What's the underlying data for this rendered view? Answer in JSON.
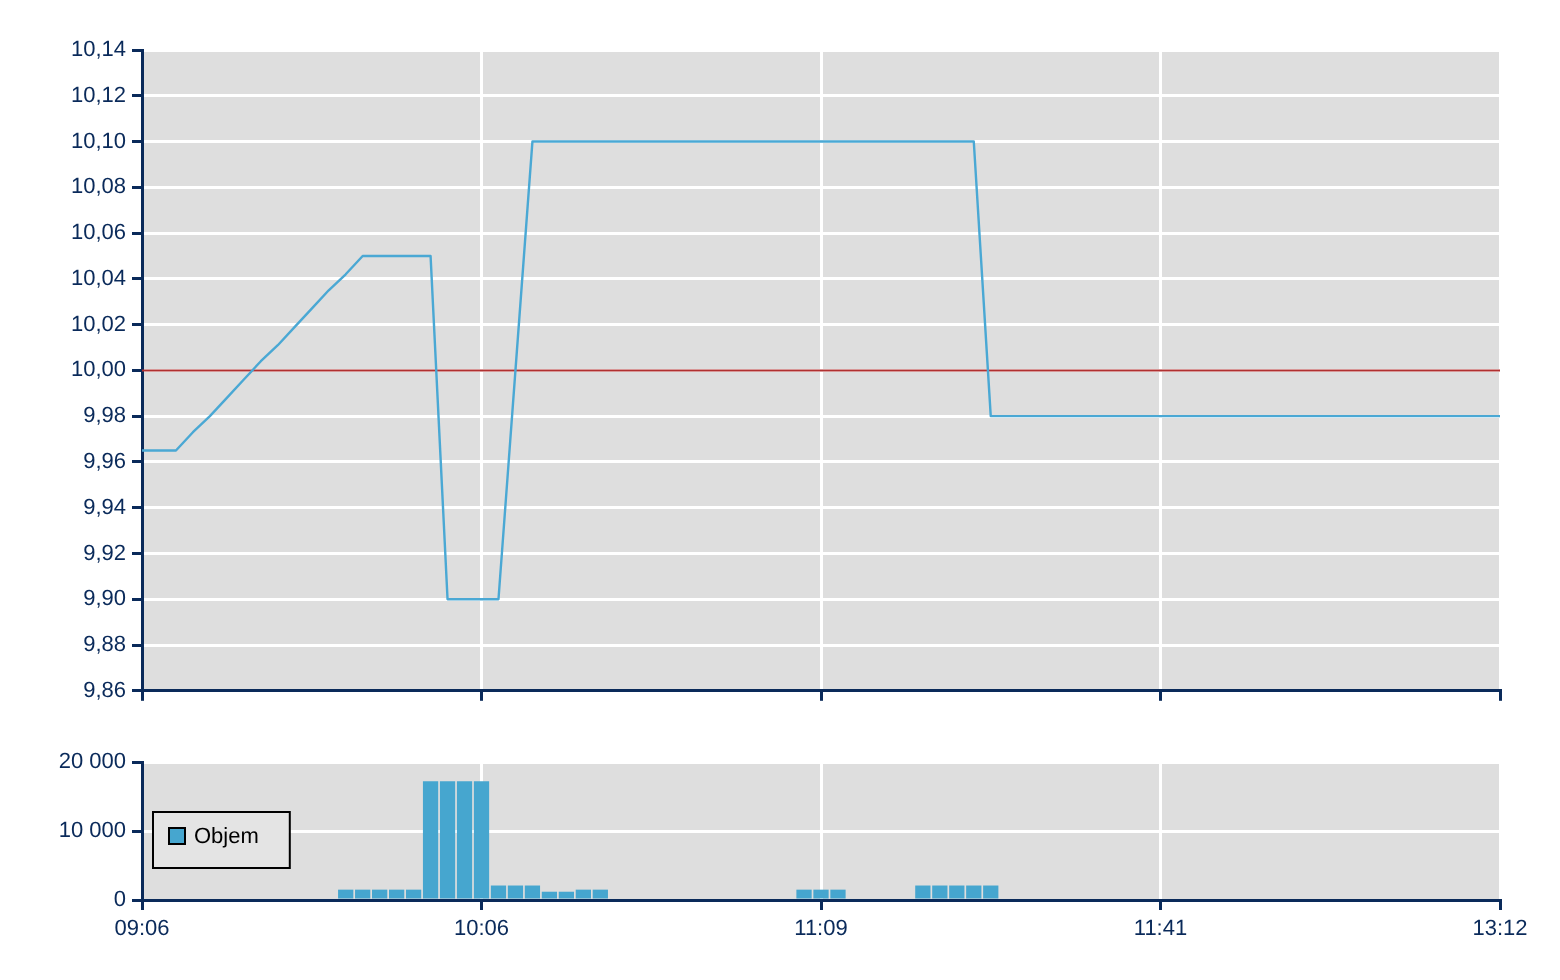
{
  "chart_data": [
    {
      "type": "line",
      "categories": [
        null,
        null,
        null,
        null,
        null,
        null,
        null,
        null,
        null,
        null,
        null,
        null,
        null,
        null,
        null,
        null,
        null,
        null,
        null,
        null,
        null,
        null,
        null,
        null,
        null,
        null,
        null,
        null,
        null,
        null,
        null,
        null,
        null,
        null,
        null,
        null,
        null,
        null,
        null,
        null,
        null,
        null,
        null,
        null,
        null,
        null,
        null,
        null,
        null,
        null,
        null,
        null,
        null,
        null,
        null,
        null,
        null,
        null,
        null,
        null,
        null,
        null,
        null,
        null,
        null,
        null,
        null,
        null,
        null,
        null,
        null,
        null,
        null,
        null,
        null,
        null,
        null,
        null,
        null,
        null,
        null
      ],
      "ylim": [
        9.86,
        10.14
      ],
      "yticks": [
        {
          "value": 9.86,
          "label": "9,86"
        },
        {
          "value": 9.88,
          "label": "9,88"
        },
        {
          "value": 9.9,
          "label": "9,90"
        },
        {
          "value": 9.92,
          "label": "9,92"
        },
        {
          "value": 9.94,
          "label": "9,94"
        },
        {
          "value": 9.96,
          "label": "9,96"
        },
        {
          "value": 9.98,
          "label": "9,98"
        },
        {
          "value": 10.0,
          "label": "10,00"
        },
        {
          "value": 10.02,
          "label": "10,02"
        },
        {
          "value": 10.04,
          "label": "10,04"
        },
        {
          "value": 10.06,
          "label": "10,06"
        },
        {
          "value": 10.08,
          "label": "10,08"
        },
        {
          "value": 10.1,
          "label": "10,10"
        },
        {
          "value": 10.12,
          "label": "10,12"
        },
        {
          "value": 10.14,
          "label": "10,14"
        }
      ],
      "series": [
        {
          "color": "#4aa8d4",
          "values": [
            9.965,
            9.965,
            9.965,
            9.973,
            9.98,
            9.988,
            9.996,
            10.004,
            10.011,
            10.019,
            10.027,
            10.035,
            10.042,
            10.05,
            10.05,
            10.05,
            10.05,
            10.05,
            9.9,
            9.9,
            9.9,
            9.9,
            10.0,
            10.1,
            10.1,
            10.1,
            10.1,
            10.1,
            10.1,
            10.1,
            10.1,
            10.1,
            10.1,
            10.1,
            10.1,
            10.1,
            10.1,
            10.1,
            10.1,
            10.1,
            10.1,
            10.1,
            10.1,
            10.1,
            10.1,
            10.1,
            10.1,
            10.1,
            10.1,
            10.1,
            9.98,
            9.98,
            9.98,
            9.98,
            9.98,
            9.98,
            9.98,
            9.98,
            9.98,
            9.98,
            9.98,
            9.98,
            9.98,
            9.98,
            9.98,
            9.98,
            9.98,
            9.98,
            9.98,
            9.98,
            9.98,
            9.98,
            9.98,
            9.98,
            9.98,
            9.98,
            9.98,
            9.98,
            9.98,
            9.98,
            9.98
          ]
        }
      ],
      "ref_lines": [
        {
          "axis": "y",
          "value": 10.0,
          "color": "#b03030"
        }
      ],
      "grid": true
    },
    {
      "type": "bar",
      "categories": [
        "09:06",
        null,
        null,
        null,
        null,
        null,
        null,
        null,
        null,
        null,
        null,
        null,
        null,
        null,
        null,
        null,
        null,
        null,
        null,
        null,
        "10:06",
        null,
        null,
        null,
        null,
        null,
        null,
        null,
        null,
        null,
        null,
        null,
        null,
        null,
        null,
        null,
        null,
        null,
        null,
        null,
        "11:09",
        null,
        null,
        null,
        null,
        null,
        null,
        null,
        null,
        null,
        null,
        null,
        null,
        null,
        null,
        null,
        null,
        null,
        null,
        null,
        "11:41",
        null,
        null,
        null,
        null,
        null,
        null,
        null,
        null,
        null,
        null,
        null,
        null,
        null,
        null,
        null,
        null,
        null,
        null,
        null,
        "13:12"
      ],
      "ylim": [
        0,
        20000
      ],
      "yticks": [
        {
          "value": 0,
          "label": "0"
        },
        {
          "value": 10000,
          "label": "10 000"
        },
        {
          "value": 20000,
          "label": "20 000"
        }
      ],
      "series": [
        {
          "name": "Objem",
          "color": "#46a6cf",
          "values": [
            null,
            null,
            null,
            null,
            null,
            null,
            null,
            null,
            null,
            null,
            null,
            null,
            1500,
            1500,
            1500,
            1500,
            1500,
            17200,
            17200,
            17200,
            17200,
            2100,
            2100,
            2100,
            1200,
            1200,
            1500,
            1500,
            null,
            null,
            null,
            null,
            null,
            null,
            null,
            null,
            null,
            null,
            null,
            1500,
            1500,
            1500,
            null,
            null,
            null,
            null,
            2100,
            2100,
            2100,
            2100,
            2100,
            null,
            null,
            null,
            null,
            null,
            null,
            null,
            null,
            null,
            null,
            null,
            null,
            null,
            null,
            null,
            null,
            null,
            null,
            null,
            null,
            null,
            null,
            null,
            null,
            null,
            null,
            null,
            null,
            null,
            null
          ]
        }
      ],
      "grid": true,
      "legend": "left"
    }
  ]
}
